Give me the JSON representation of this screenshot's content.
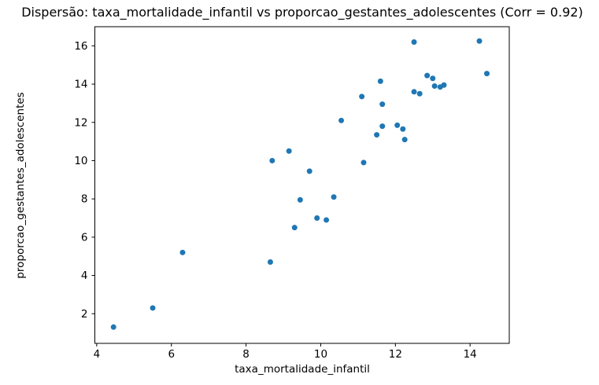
{
  "chart_data": {
    "type": "scatter",
    "title": "Dispersão: taxa_mortalidade_infantil vs proporcao_gestantes_adolescentes (Corr = 0.92)",
    "xlabel": "taxa_mortalidade_infantil",
    "ylabel": "proporcao_gestantes_adolescentes",
    "correlation_shown_in_title": 0.92,
    "xlim": [
      3.95,
      15.05
    ],
    "ylim": [
      0.45,
      17.0
    ],
    "xticks": [
      4,
      6,
      8,
      10,
      12,
      14
    ],
    "yticks": [
      2,
      4,
      6,
      8,
      10,
      12,
      14,
      16
    ],
    "grid": false,
    "legend": "none",
    "marker_color": "#1f77b4",
    "axis_color": "#000000",
    "background_color": "#ffffff",
    "points": [
      [
        4.45,
        1.3
      ],
      [
        5.5,
        2.3
      ],
      [
        6.3,
        5.2
      ],
      [
        8.65,
        4.7
      ],
      [
        8.7,
        10.0
      ],
      [
        9.15,
        10.5
      ],
      [
        9.3,
        6.5
      ],
      [
        9.45,
        7.95
      ],
      [
        9.7,
        9.45
      ],
      [
        9.9,
        7.0
      ],
      [
        10.15,
        6.9
      ],
      [
        10.35,
        8.1
      ],
      [
        10.55,
        12.1
      ],
      [
        11.1,
        13.35
      ],
      [
        11.15,
        9.9
      ],
      [
        11.5,
        11.35
      ],
      [
        11.6,
        14.15
      ],
      [
        11.65,
        12.95
      ],
      [
        11.65,
        11.8
      ],
      [
        12.05,
        11.85
      ],
      [
        12.2,
        11.65
      ],
      [
        12.25,
        11.1
      ],
      [
        12.5,
        13.6
      ],
      [
        12.5,
        16.2
      ],
      [
        12.65,
        13.5
      ],
      [
        12.85,
        14.45
      ],
      [
        13.0,
        14.3
      ],
      [
        13.05,
        13.9
      ],
      [
        13.2,
        13.85
      ],
      [
        13.3,
        13.95
      ],
      [
        14.25,
        16.25
      ],
      [
        14.45,
        14.55
      ]
    ]
  }
}
